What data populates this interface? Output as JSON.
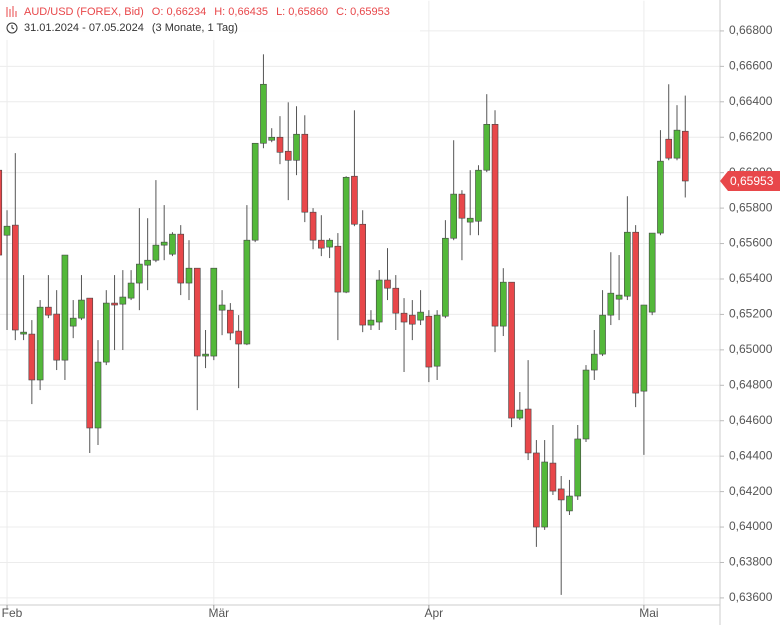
{
  "chart_data": {
    "type": "candlestick",
    "title": "AUD/USD (FOREX, Bid)",
    "ohlc_labels": [
      "O: 0,66234",
      "H: 0,66435",
      "L: 0,65860",
      "C: 0,65953"
    ],
    "subtitle": "31.01.2024 - 07.05.2024",
    "period": "(3 Monate, 1 Tag)",
    "up_color": "#53b83a",
    "down_color": "#e8474a",
    "x": [
      -1,
      0,
      1,
      2,
      3,
      4,
      5,
      6,
      7,
      8,
      9,
      10,
      11,
      12,
      13,
      14,
      15,
      16,
      17,
      18,
      19,
      20,
      21,
      22,
      23,
      24,
      25,
      26,
      27,
      28,
      29,
      30,
      31,
      32,
      33,
      34,
      35,
      36,
      37,
      38,
      39,
      40,
      41,
      42,
      43,
      44,
      45,
      46,
      47,
      48,
      49,
      50,
      51,
      52,
      53,
      54,
      55,
      56,
      57,
      58,
      59,
      60,
      61,
      62,
      63,
      64,
      65,
      66,
      67,
      68,
      69,
      70,
      71,
      72,
      73,
      74,
      75,
      76,
      77,
      78,
      79,
      80,
      81,
      82
    ],
    "open": [
      0.66014,
      0.65647,
      0.65704,
      0.65089,
      0.65089,
      0.6483,
      0.65241,
      0.65202,
      0.64942,
      0.65134,
      0.65179,
      0.65292,
      0.64559,
      0.64931,
      0.65264,
      0.65258,
      0.65292,
      0.65377,
      0.65478,
      0.65506,
      0.65591,
      0.6554,
      0.65653,
      0.65377,
      0.65461,
      0.64965,
      0.64965,
      0.65224,
      0.65224,
      0.65106,
      0.65033,
      0.65619,
      0.66166,
      0.66183,
      0.662,
      0.66121,
      0.6607,
      0.66217,
      0.65777,
      0.65619,
      0.6558,
      0.65585,
      0.65326,
      0.6598,
      0.65709,
      0.6514,
      0.65157,
      0.65394,
      0.65348,
      0.65207,
      0.65196,
      0.65168,
      0.6519,
      0.64908,
      0.6519,
      0.6563,
      0.65879,
      0.65721,
      0.65726,
      0.66014,
      0.66273,
      0.65134,
      0.65382,
      0.64615,
      0.64666,
      0.64418,
      0.64,
      0.64361,
      0.64215,
      0.64091,
      0.64175,
      0.64497,
      0.64886,
      0.64976,
      0.65196,
      0.65286,
      0.65303,
      0.65664,
      0.64767,
      0.65213,
      0.65659,
      0.66189,
      0.66082,
      0.66234
    ],
    "high": [
      0.6624,
      0.65788,
      0.6611,
      0.65422,
      0.65168,
      0.65281,
      0.65422,
      0.65337,
      0.65535,
      0.65281,
      0.65422,
      0.65292,
      0.65055,
      0.65337,
      0.65422,
      0.6545,
      0.6545,
      0.658,
      0.65743,
      0.65958,
      0.65817,
      0.65664,
      0.65704,
      0.65619,
      0.65461,
      0.65112,
      0.65461,
      0.65337,
      0.65264,
      0.65196,
      0.65817,
      0.66166,
      0.66668,
      0.66251,
      0.66319,
      0.66397,
      0.66375,
      0.66324,
      0.658,
      0.6576,
      0.6563,
      0.65659,
      0.6598,
      0.66352,
      0.65788,
      0.65224,
      0.6545,
      0.65574,
      0.65422,
      0.65292,
      0.65281,
      0.65337,
      0.65224,
      0.65224,
      0.65732,
      0.66183,
      0.65901,
      0.66014,
      0.66042,
      0.66443,
      0.66352,
      0.65461,
      0.65382,
      0.64762,
      0.64942,
      0.64491,
      0.64491,
      0.64576,
      0.64288,
      0.64266,
      0.64576,
      0.64914,
      0.65112,
      0.65337,
      0.65551,
      0.65535,
      0.65867,
      0.65704,
      0.65253,
      0.65659,
      0.6624,
      0.66499,
      0.66381,
      0.66435
    ],
    "low": [
      0.65506,
      0.65112,
      0.65055,
      0.65055,
      0.64694,
      0.64773,
      0.65179,
      0.64886,
      0.6483,
      0.65066,
      0.65168,
      0.64418,
      0.64463,
      0.64914,
      0.64999,
      0.64999,
      0.65281,
      0.65224,
      0.65337,
      0.65495,
      0.65506,
      0.65529,
      0.65309,
      0.65281,
      0.6466,
      0.64897,
      0.64942,
      0.65083,
      0.65055,
      0.64784,
      0.65027,
      0.65608,
      0.66138,
      0.66172,
      0.66048,
      0.65845,
      0.65986,
      0.65721,
      0.65568,
      0.65529,
      0.65518,
      0.65055,
      0.6532,
      0.65698,
      0.651,
      0.65112,
      0.65112,
      0.65281,
      0.65112,
      0.64875,
      0.65055,
      0.6514,
      0.64818,
      0.6483,
      0.65179,
      0.65619,
      0.65506,
      0.65647,
      0.65647,
      0.66003,
      0.64987,
      0.65078,
      0.64564,
      0.64604,
      0.64378,
      0.63888,
      0.63984,
      0.64181,
      0.63617,
      0.64068,
      0.64153,
      0.6448,
      0.6483,
      0.64965,
      0.6514,
      0.65168,
      0.65281,
      0.64677,
      0.64407,
      0.65196,
      0.65647,
      0.6607,
      0.6607,
      0.6586
    ],
    "close": [
      0.65535,
      0.65698,
      0.65112,
      0.651,
      0.6483,
      0.65241,
      0.65196,
      0.64942,
      0.65535,
      0.65179,
      0.65281,
      0.64559,
      0.64931,
      0.65264,
      0.65253,
      0.65298,
      0.65377,
      0.65484,
      0.65506,
      0.65591,
      0.65608,
      0.65653,
      0.65377,
      0.65461,
      0.64965,
      0.64976,
      0.65461,
      0.65253,
      0.65095,
      0.65033,
      0.65619,
      0.66166,
      0.66499,
      0.662,
      0.66115,
      0.6607,
      0.66217,
      0.65777,
      0.65619,
      0.65574,
      0.65619,
      0.65326,
      0.65974,
      0.65709,
      0.6514,
      0.65168,
      0.65394,
      0.65348,
      0.65207,
      0.65157,
      0.65145,
      0.65213,
      0.64903,
      0.65196,
      0.6563,
      0.65879,
      0.65743,
      0.65743,
      0.66014,
      0.66273,
      0.65134,
      0.65382,
      0.64615,
      0.6466,
      0.64418,
      0.64,
      0.64367,
      0.64203,
      0.64153,
      0.64175,
      0.64497,
      0.64886,
      0.64976,
      0.65196,
      0.6532,
      0.65309,
      0.65664,
      0.64756,
      0.65253,
      0.65659,
      0.66065,
      0.66082,
      0.6624,
      0.65953
    ],
    "last_price": {
      "value": 0.65953,
      "label": "0,65953"
    },
    "xlim": [
      -0.85,
      86.2
    ],
    "xticks": [
      {
        "value": 0,
        "label": "Feb"
      },
      {
        "value": 25,
        "label": "Mär"
      },
      {
        "value": 51,
        "label": "Apr"
      },
      {
        "value": 77,
        "label": "Mai"
      }
    ],
    "ylim": [
      0.6356,
      0.6697
    ],
    "yticks": [
      {
        "value": 0.636,
        "label": "0,63600"
      },
      {
        "value": 0.638,
        "label": "0,63800"
      },
      {
        "value": 0.64,
        "label": "0,64000"
      },
      {
        "value": 0.642,
        "label": "0,64200"
      },
      {
        "value": 0.644,
        "label": "0,64400"
      },
      {
        "value": 0.646,
        "label": "0,64600"
      },
      {
        "value": 0.648,
        "label": "0,64800"
      },
      {
        "value": 0.65,
        "label": "0,65000"
      },
      {
        "value": 0.652,
        "label": "0,65200"
      },
      {
        "value": 0.654,
        "label": "0,65400"
      },
      {
        "value": 0.656,
        "label": "0,65600"
      },
      {
        "value": 0.658,
        "label": "0,65800"
      },
      {
        "value": 0.66,
        "label": "0,66000"
      },
      {
        "value": 0.662,
        "label": "0,66200"
      },
      {
        "value": 0.664,
        "label": "0,66400"
      },
      {
        "value": 0.666,
        "label": "0,66600"
      },
      {
        "value": 0.668,
        "label": "0,66800"
      }
    ],
    "grid": true
  }
}
